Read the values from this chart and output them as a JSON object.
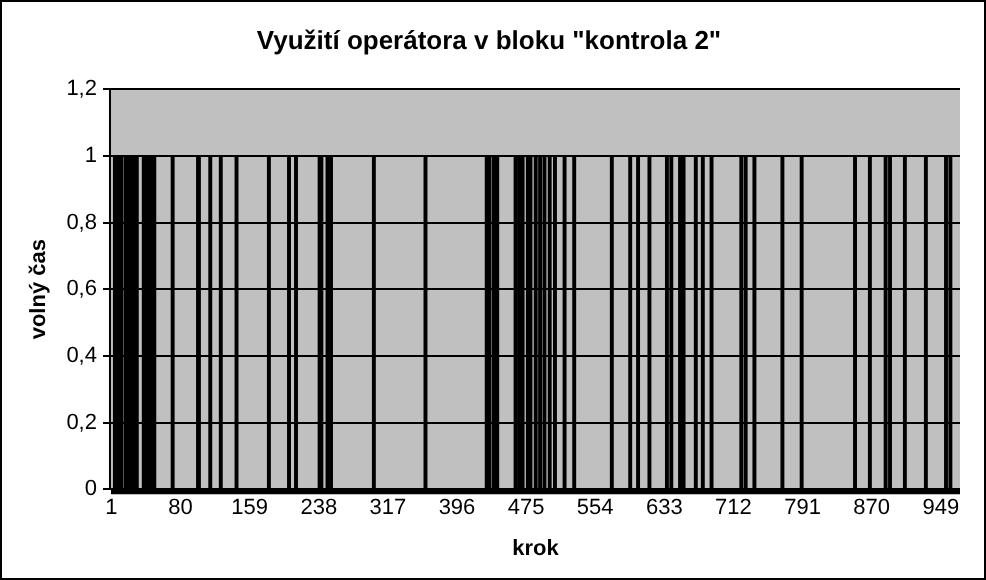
{
  "chart_data": {
    "type": "histogram",
    "title": "Využití operátora v bloku \"kontrola 2\"",
    "xlabel": "krok",
    "ylabel": "volný čas",
    "bins": [
      0.5,
      3.5,
      13.5,
      15.5,
      31.5,
      36.5,
      51.5,
      70.5,
      71.5,
      98.5,
      102.5,
      113.5,
      114.5,
      125.5,
      126.5,
      143.5,
      144.5,
      180.5,
      181.5,
      202.5,
      205.5,
      211.5,
      212.5,
      237.5,
      242.5,
      247.5,
      248.5,
      251.5,
      252.5,
      300.5,
      301.5,
      359.5,
      360.5,
      429.5,
      430.5,
      432.5,
      433.5,
      436.5,
      443.5,
      462.5,
      463.5,
      466.5,
      467.5,
      470.5,
      471.5,
      475.5,
      481.5,
      485.5,
      486.5,
      490.5,
      491.5,
      495.5,
      496.5,
      501.5,
      502.5,
      507.5,
      508.5,
      518.5,
      519.5,
      529.5,
      530.5,
      572.5,
      573.5,
      593.5,
      594.5,
      602.5,
      603.5,
      614.5,
      617.5,
      635.5,
      636.5,
      640.5,
      641.5,
      649.5,
      656.5,
      668.5,
      669.5,
      676.5,
      677.5,
      686.5,
      687.5,
      720.5,
      721.5,
      725.5,
      726.5,
      734.5,
      737.5,
      767.5,
      768.5,
      789.5,
      790.5,
      850.5,
      851.5,
      867.5,
      868.5,
      885.5,
      886.5,
      890.5,
      891.5,
      907.5,
      908.5,
      931.5,
      932.5,
      954.5,
      955.5,
      959.5,
      960.5,
      971
    ],
    "values": [
      0,
      1,
      0,
      1,
      0,
      1,
      0,
      1,
      0,
      1,
      0,
      1,
      0,
      1,
      0,
      1,
      0,
      1,
      0,
      1,
      0,
      1,
      0,
      1,
      0,
      1,
      0,
      1,
      0,
      1,
      0,
      1,
      0,
      1,
      0,
      1,
      0,
      1,
      0,
      1,
      0,
      1,
      0,
      1,
      0,
      1,
      0,
      1,
      0,
      1,
      0,
      1,
      0,
      1,
      0,
      1,
      0,
      1,
      0,
      1,
      0,
      1,
      0,
      1,
      0,
      1,
      0,
      1,
      0,
      1,
      0,
      1,
      0,
      1,
      0,
      1,
      0,
      1,
      0,
      1,
      0,
      1,
      0,
      1,
      0,
      1,
      0,
      1,
      0,
      1,
      0,
      1,
      0,
      1,
      0,
      1,
      0,
      1,
      0,
      1,
      0,
      1,
      0,
      1,
      0,
      1,
      0
    ],
    "color": "#000000",
    "xlim": [
      0.5,
      971
    ],
    "xticks": [
      1,
      80,
      159,
      238,
      317,
      396,
      475,
      554,
      633,
      712,
      791,
      870,
      949
    ],
    "ylim": [
      0,
      1.2
    ],
    "yticks": [
      0,
      {
        "value": 0.2,
        "label": "0,2"
      },
      {
        "value": 0.4,
        "label": "0,4"
      },
      {
        "value": 0.6,
        "label": "0,6"
      },
      {
        "value": 0.8,
        "label": "0,8"
      },
      1,
      {
        "value": 1.2,
        "label": "1,2"
      }
    ],
    "grid": "y"
  }
}
